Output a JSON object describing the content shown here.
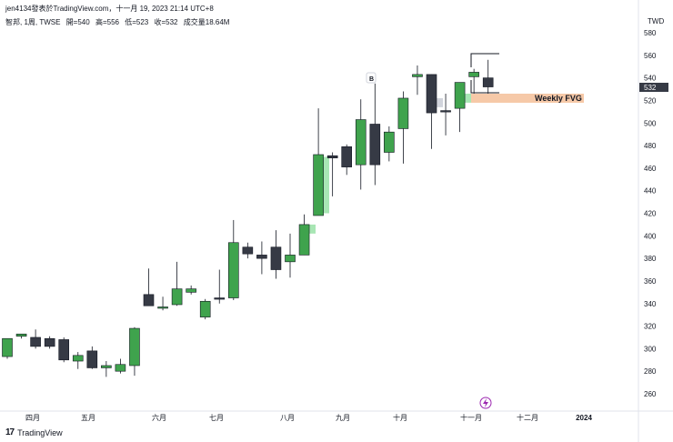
{
  "header": {
    "publish_line": "jen4134發表於TradingView.com，十一月 19, 2023 21:14 UTC+8",
    "symbol_line": "智邦, 1周, TWSE",
    "open": "開=540",
    "high": "高=556",
    "low": "低=523",
    "close": "收=532",
    "volume": "成交量18.64M"
  },
  "price_axis": {
    "currency": "TWD",
    "ticks": [
      "580",
      "560",
      "540",
      "520",
      "500",
      "480",
      "460",
      "440",
      "420",
      "400",
      "380",
      "360",
      "340",
      "320",
      "300",
      "280",
      "260"
    ],
    "last_price_label": "532"
  },
  "time_axis": {
    "labels": [
      "四月",
      "五月",
      "六月",
      "七月",
      "八月",
      "九月",
      "十月",
      "十一月",
      "十二月",
      "2024"
    ]
  },
  "annotations": {
    "fvg_label": "Weekly FVG",
    "b_marker": "B"
  },
  "footer": {
    "brand": "TradingView"
  },
  "colors": {
    "up": "#3fa34d",
    "down": "#363a45",
    "fvg": "#f6c9a8",
    "gap_light": "#a8e6b4",
    "gap_gray": "#d1d4dc",
    "last_price_bg": "#363a45",
    "lightning": "#9c27b0"
  },
  "chart_data": {
    "type": "candlestick",
    "timeframe": "1W",
    "symbol": "智邦",
    "exchange": "TWSE",
    "ylim": [
      250,
      590
    ],
    "yticks": [
      260,
      280,
      300,
      320,
      340,
      360,
      380,
      400,
      420,
      440,
      460,
      480,
      500,
      520,
      540,
      560,
      580
    ],
    "x_labels": [
      "四月",
      "五月",
      "六月",
      "七月",
      "八月",
      "九月",
      "十月",
      "十一月",
      "十二月",
      "2024"
    ],
    "candles": [
      {
        "o": 293,
        "h": 306,
        "l": 291,
        "c": 309
      },
      {
        "o": 311,
        "h": 313,
        "l": 309,
        "c": 313
      },
      {
        "o": 310,
        "h": 317,
        "l": 300,
        "c": 302
      },
      {
        "o": 309,
        "h": 311,
        "l": 300,
        "c": 302
      },
      {
        "o": 308,
        "h": 310,
        "l": 288,
        "c": 290
      },
      {
        "o": 289,
        "h": 297,
        "l": 282,
        "c": 294
      },
      {
        "o": 298,
        "h": 302,
        "l": 282,
        "c": 283
      },
      {
        "o": 283,
        "h": 289,
        "l": 275,
        "c": 285
      },
      {
        "o": 280,
        "h": 291,
        "l": 278,
        "c": 286
      },
      {
        "o": 285,
        "h": 319,
        "l": 276,
        "c": 318
      },
      {
        "o": 348,
        "h": 371,
        "l": 338,
        "c": 338
      },
      {
        "o": 336,
        "h": 346,
        "l": 334,
        "c": 337
      },
      {
        "o": 339,
        "h": 377,
        "l": 338,
        "c": 353
      },
      {
        "o": 350,
        "h": 356,
        "l": 348,
        "c": 353
      },
      {
        "o": 328,
        "h": 344,
        "l": 326,
        "c": 342
      },
      {
        "o": 345,
        "h": 370,
        "l": 340,
        "c": 344
      },
      {
        "o": 345,
        "h": 414,
        "l": 343,
        "c": 394
      },
      {
        "o": 390,
        "h": 394,
        "l": 380,
        "c": 384
      },
      {
        "o": 383,
        "h": 395,
        "l": 366,
        "c": 380
      },
      {
        "o": 390,
        "h": 405,
        "l": 362,
        "c": 370
      },
      {
        "o": 377,
        "h": 402,
        "l": 363,
        "c": 383
      },
      {
        "o": 383,
        "h": 419,
        "l": 383,
        "c": 410
      },
      {
        "o": 418,
        "h": 513,
        "l": 418,
        "c": 472
      },
      {
        "o": 471,
        "h": 474,
        "l": 435,
        "c": 469
      },
      {
        "o": 479,
        "h": 481,
        "l": 454,
        "c": 461
      },
      {
        "o": 463,
        "h": 521,
        "l": 441,
        "c": 503
      },
      {
        "o": 499,
        "h": 535,
        "l": 445,
        "c": 463
      },
      {
        "o": 474,
        "h": 497,
        "l": 466,
        "c": 492
      },
      {
        "o": 495,
        "h": 528,
        "l": 464,
        "c": 522
      },
      {
        "o": 541,
        "h": 551,
        "l": 525,
        "c": 543
      },
      {
        "o": 543,
        "h": 540,
        "l": 477,
        "c": 509
      },
      {
        "o": 511,
        "h": 526,
        "l": 489,
        "c": 510
      },
      {
        "o": 513,
        "h": 535,
        "l": 492,
        "c": 536
      },
      {
        "o": 541,
        "h": 548,
        "l": 526,
        "c": 545
      },
      {
        "o": 540,
        "h": 556,
        "l": 523,
        "c": 532
      }
    ],
    "fvg_zone": {
      "low": 518,
      "high": 526,
      "label": "Weekly FVG"
    }
  }
}
